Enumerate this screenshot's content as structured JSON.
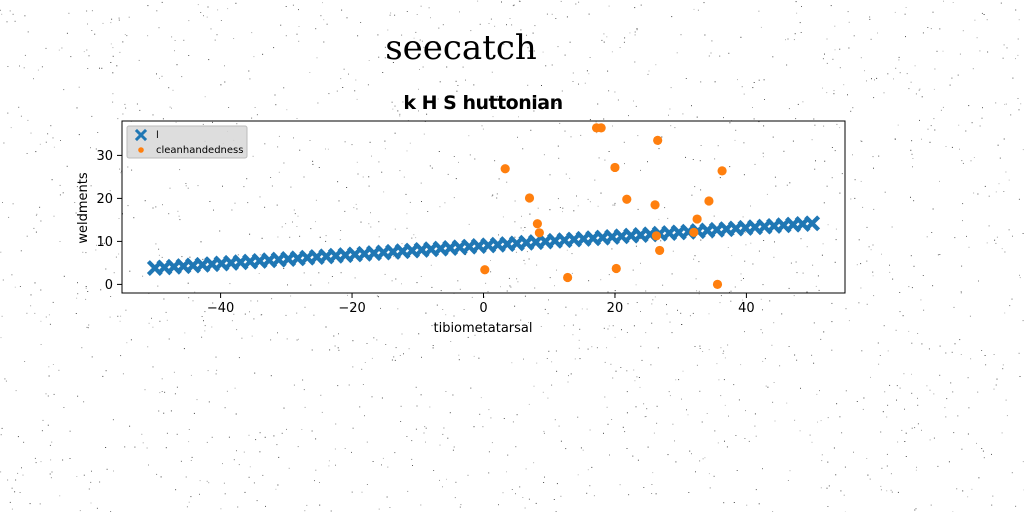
{
  "figure": {
    "suptitle": "seecatch"
  },
  "chart_data": {
    "type": "scatter",
    "title": "k H S huttonian",
    "xlabel": "tibiometatarsal",
    "ylabel": "weldments",
    "xlim": [
      -55,
      55
    ],
    "ylim": [
      -2,
      38
    ],
    "xticks": [
      -40,
      -20,
      0,
      20,
      40
    ],
    "yticks": [
      0,
      10,
      20,
      30
    ],
    "xtick_labels": [
      "−40",
      "−20",
      "0",
      "20",
      "40"
    ],
    "ytick_labels": [
      "0",
      "10",
      "20",
      "30"
    ],
    "grid": false,
    "legend_position": "top-left",
    "series": [
      {
        "name": "l",
        "marker": "x",
        "color": "#1f77b4",
        "line": {
          "x_start": -50,
          "x_end": 50,
          "y_start": 3.8,
          "y_end": 14.2,
          "count": 70
        }
      },
      {
        "name": "cleanhandedness",
        "marker": "o",
        "color": "#ff7f0e",
        "x": [
          0.2,
          3.3,
          7.0,
          8.2,
          8.5,
          12.8,
          17.2,
          17.9,
          20.0,
          20.2,
          21.8,
          26.1,
          26.3,
          26.5,
          26.8,
          32.0,
          32.5,
          34.3,
          35.6,
          36.3
        ],
        "y": [
          3.4,
          26.9,
          20.1,
          14.1,
          12.0,
          1.6,
          36.4,
          36.4,
          27.2,
          3.7,
          19.8,
          18.5,
          11.3,
          33.5,
          7.9,
          12.1,
          15.2,
          19.4,
          0.0,
          26.4
        ]
      }
    ]
  }
}
